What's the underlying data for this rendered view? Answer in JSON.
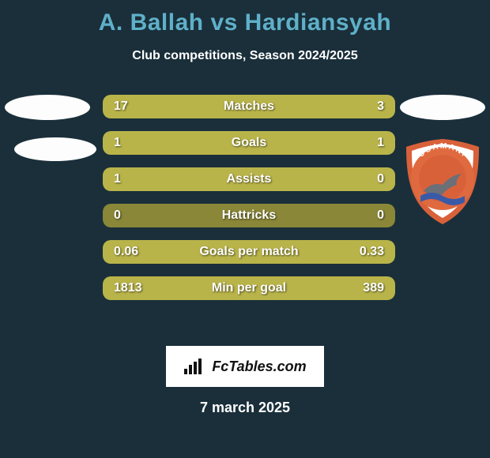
{
  "background_color": "#1a2f3a",
  "title": "A. Ballah vs Hardiansyah",
  "title_color": "#5fb0c9",
  "subtitle": "Club competitions, Season 2024/2025",
  "subtitle_color": "#ffffff",
  "bar_track_color": "#8a8738",
  "bar_fill_color": "#b9b44a",
  "value_text_color": "#ffffff",
  "label_text_color": "#ffffff",
  "stats": [
    {
      "label": "Matches",
      "left_text": "17",
      "right_text": "3",
      "left_pct": 85,
      "right_pct": 15
    },
    {
      "label": "Goals",
      "left_text": "1",
      "right_text": "1",
      "left_pct": 50,
      "right_pct": 50
    },
    {
      "label": "Assists",
      "left_text": "1",
      "right_text": "0",
      "left_pct": 100,
      "right_pct": 0
    },
    {
      "label": "Hattricks",
      "left_text": "0",
      "right_text": "0",
      "left_pct": 0,
      "right_pct": 0
    },
    {
      "label": "Goals per match",
      "left_text": "0.06",
      "right_text": "0.33",
      "left_pct": 15,
      "right_pct": 85
    },
    {
      "label": "Min per goal",
      "left_text": "1813",
      "right_text": "389",
      "left_pct": 82,
      "right_pct": 18
    }
  ],
  "footer_brand": "FcTables.com",
  "footer_bg": "#ffffff",
  "footer_text_color": "#111111",
  "date": "7 march 2025",
  "date_color": "#ffffff",
  "badge": {
    "shield_outer": "#d9613a",
    "shield_inner": "#ffffff",
    "ring_bg": "#e06a3f",
    "ring_text_color": "#ffffff",
    "top_text": "USAMANI",
    "inner_fill": "#d9613a",
    "dolphin_color": "#6b6f78",
    "wave_color": "#3a5aa8"
  }
}
